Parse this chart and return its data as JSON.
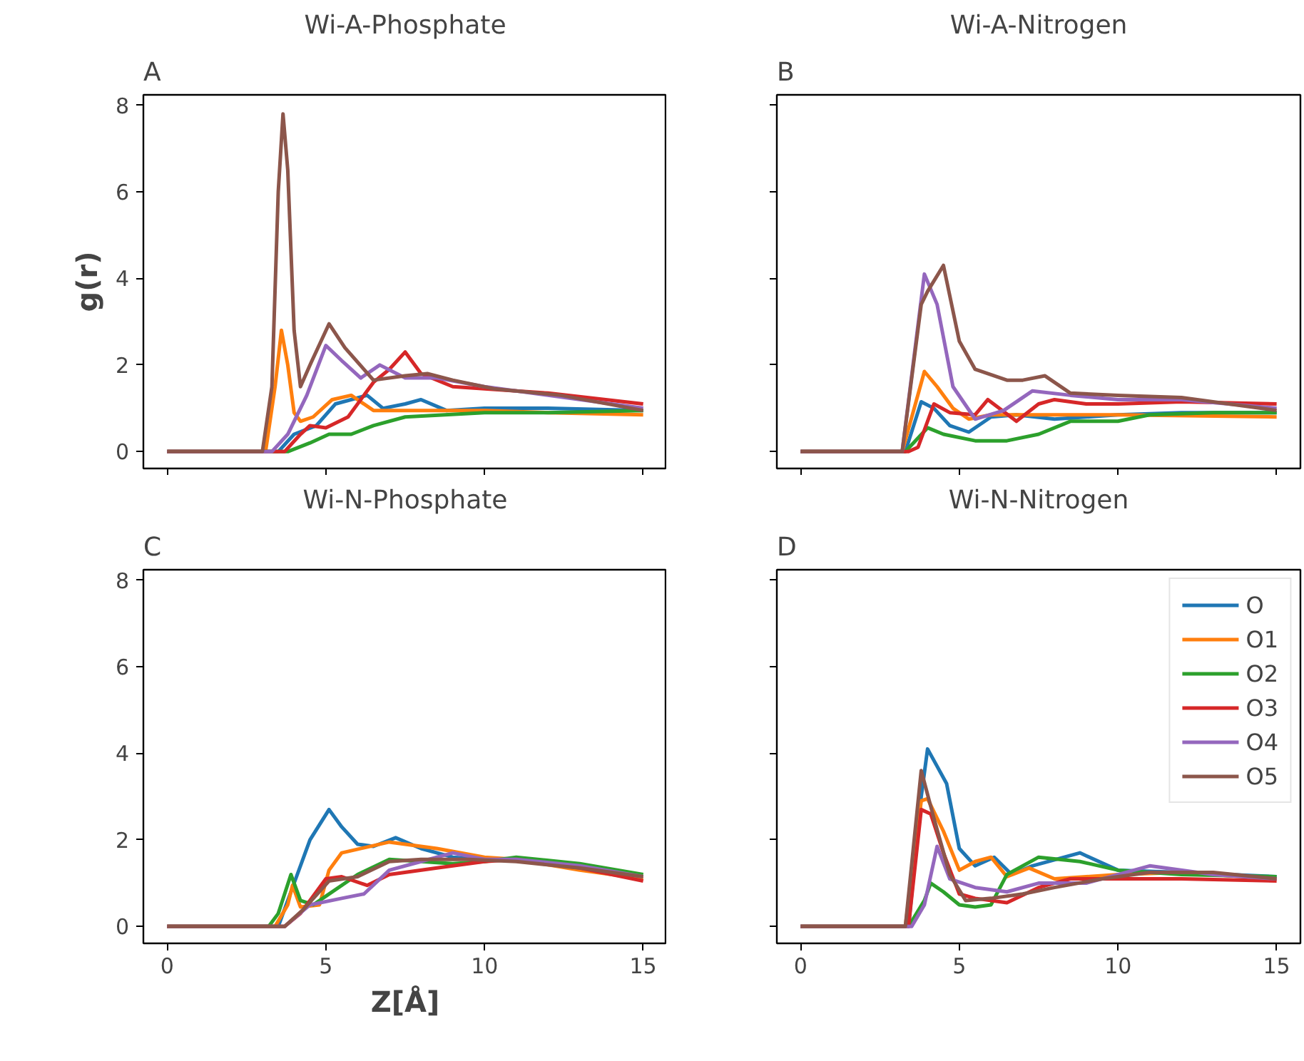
{
  "chart_data": [
    {
      "type": "line",
      "title": "Wi-A-Phosphate",
      "annotations": [
        "A"
      ],
      "ylabel": "g(r)",
      "tick_labels": "y",
      "grid": false,
      "line_style": "solid",
      "marker": "none",
      "xlim": [
        -0.75,
        15.75
      ],
      "ylim": [
        -0.39,
        8.24
      ],
      "xticks": [
        0,
        5,
        10,
        15
      ],
      "yticks": [
        0,
        2,
        4,
        6,
        8
      ],
      "series": [
        {
          "color": "#1f77b4",
          "x": [
            0,
            3.5,
            4.0,
            4.7,
            5.3,
            6.3,
            6.8,
            7.5,
            8.0,
            8.8,
            10,
            12,
            15
          ],
          "values": [
            0,
            0,
            0.4,
            0.6,
            1.1,
            1.3,
            1.0,
            1.1,
            1.2,
            0.95,
            1.0,
            1.0,
            0.95
          ]
        },
        {
          "color": "#ff7f0e",
          "x": [
            0,
            3.1,
            3.4,
            3.6,
            3.8,
            4.0,
            4.2,
            4.6,
            5.2,
            5.8,
            6.5,
            8,
            10,
            12,
            15
          ],
          "values": [
            0,
            0,
            1.5,
            2.8,
            2.0,
            0.9,
            0.7,
            0.8,
            1.2,
            1.3,
            0.95,
            0.95,
            0.95,
            0.9,
            0.85
          ]
        },
        {
          "color": "#2ca02c",
          "x": [
            0,
            3.8,
            4.5,
            5.1,
            5.8,
            6.5,
            7.5,
            10,
            12,
            15
          ],
          "values": [
            0,
            0,
            0.2,
            0.4,
            0.4,
            0.6,
            0.8,
            0.9,
            0.9,
            0.95
          ]
        },
        {
          "color": "#d62728",
          "x": [
            0,
            3.7,
            4.2,
            4.5,
            5.0,
            5.7,
            6.5,
            7.0,
            7.5,
            8.0,
            9,
            10,
            12,
            15
          ],
          "values": [
            0,
            0,
            0.4,
            0.6,
            0.55,
            0.8,
            1.6,
            1.9,
            2.3,
            1.8,
            1.5,
            1.45,
            1.35,
            1.1
          ]
        },
        {
          "color": "#9467bd",
          "x": [
            0,
            3.3,
            3.8,
            4.4,
            5.0,
            5.5,
            6.1,
            6.7,
            7.5,
            8.5,
            10,
            12,
            15
          ],
          "values": [
            0,
            0,
            0.4,
            1.3,
            2.45,
            2.1,
            1.7,
            2.0,
            1.7,
            1.7,
            1.5,
            1.3,
            1.0
          ]
        },
        {
          "color": "#8c564b",
          "x": [
            0,
            3.0,
            3.3,
            3.5,
            3.65,
            3.8,
            4.0,
            4.2,
            4.5,
            5.1,
            5.6,
            6.5,
            7.5,
            8.2,
            9,
            10.3,
            12.4,
            15
          ],
          "values": [
            0,
            0,
            1.5,
            6,
            7.8,
            6.5,
            2.8,
            1.5,
            2.0,
            2.95,
            2.4,
            1.65,
            1.75,
            1.8,
            1.65,
            1.45,
            1.3,
            0.95
          ]
        }
      ]
    },
    {
      "type": "line",
      "title": "Wi-A-Nitrogen",
      "annotations": [
        "B"
      ],
      "tick_labels": false,
      "grid": false,
      "line_style": "solid",
      "marker": "none",
      "xlim": [
        -0.75,
        15.75
      ],
      "ylim": [
        -0.39,
        8.24
      ],
      "xticks": [
        0,
        5,
        10,
        15
      ],
      "yticks": [
        0,
        2,
        4,
        6,
        8
      ],
      "series": [
        {
          "color": "#1f77b4",
          "x": [
            0,
            3.3,
            3.8,
            4.2,
            4.7,
            5.3,
            6.0,
            6.8,
            8,
            10,
            12,
            15
          ],
          "values": [
            0,
            0,
            1.15,
            1.0,
            0.6,
            0.45,
            0.8,
            0.85,
            0.75,
            0.85,
            0.9,
            0.9
          ]
        },
        {
          "color": "#ff7f0e",
          "x": [
            0,
            3.2,
            3.9,
            4.3,
            4.8,
            5.3,
            6.0,
            10,
            15
          ],
          "values": [
            0,
            0,
            1.85,
            1.5,
            1.0,
            0.75,
            0.85,
            0.85,
            0.8
          ]
        },
        {
          "color": "#2ca02c",
          "x": [
            0,
            3.3,
            4.0,
            4.5,
            5.5,
            6.5,
            7.5,
            8.5,
            10,
            11,
            13,
            15
          ],
          "values": [
            0,
            0,
            0.55,
            0.4,
            0.25,
            0.25,
            0.4,
            0.7,
            0.7,
            0.85,
            0.9,
            0.9
          ]
        },
        {
          "color": "#d62728",
          "x": [
            0,
            3.4,
            3.7,
            4.2,
            4.7,
            5.5,
            5.9,
            6.8,
            7.5,
            8.0,
            9,
            10,
            12,
            15
          ],
          "values": [
            0,
            0,
            0.1,
            1.1,
            0.9,
            0.85,
            1.2,
            0.7,
            1.1,
            1.2,
            1.1,
            1.1,
            1.15,
            1.1
          ]
        },
        {
          "color": "#9467bd",
          "x": [
            0,
            3.2,
            3.9,
            4.3,
            4.8,
            5.5,
            6.4,
            7.3,
            8.5,
            10,
            12,
            15
          ],
          "values": [
            0,
            0,
            4.1,
            3.4,
            1.5,
            0.75,
            0.95,
            1.4,
            1.3,
            1.2,
            1.2,
            1.0
          ]
        },
        {
          "color": "#8c564b",
          "x": [
            0,
            3.2,
            3.8,
            4.0,
            4.5,
            5.0,
            5.5,
            6.5,
            7.0,
            7.7,
            8.5,
            10,
            12,
            15
          ],
          "values": [
            0,
            0,
            3.4,
            3.7,
            4.3,
            2.55,
            1.9,
            1.65,
            1.65,
            1.75,
            1.35,
            1.3,
            1.25,
            0.95
          ]
        }
      ]
    },
    {
      "type": "line",
      "title": "Wi-N-Phosphate",
      "annotations": [
        "C"
      ],
      "xlabel": "Z[Å]",
      "grid": false,
      "line_style": "solid",
      "marker": "none",
      "xlim": [
        -0.75,
        15.75
      ],
      "ylim": [
        -0.39,
        8.24
      ],
      "xticks": [
        0,
        5,
        10,
        15
      ],
      "yticks": [
        0,
        2,
        4,
        6,
        8
      ],
      "series": [
        {
          "color": "#1f77b4",
          "x": [
            0,
            3.5,
            3.9,
            4.5,
            5.1,
            5.5,
            6.0,
            6.5,
            7.2,
            8,
            9,
            10,
            11
          ],
          "values": [
            0,
            0,
            0.8,
            2.0,
            2.7,
            2.3,
            1.9,
            1.85,
            2.05,
            1.8,
            1.6,
            1.55,
            1.55
          ]
        },
        {
          "color": "#ff7f0e",
          "x": [
            0,
            3.4,
            3.8,
            3.95,
            4.2,
            4.8,
            5.1,
            5.5,
            7.0,
            8.5,
            10,
            11,
            13,
            15
          ],
          "values": [
            0,
            0,
            0.5,
            0.95,
            0.45,
            0.5,
            1.3,
            1.7,
            1.95,
            1.8,
            1.6,
            1.55,
            1.3,
            1.1
          ]
        },
        {
          "color": "#2ca02c",
          "x": [
            0,
            3.2,
            3.5,
            3.9,
            4.2,
            4.6,
            5,
            6,
            7,
            8,
            9,
            10,
            11,
            13,
            15
          ],
          "values": [
            0,
            0,
            0.3,
            1.2,
            0.6,
            0.5,
            0.7,
            1.2,
            1.55,
            1.5,
            1.45,
            1.5,
            1.6,
            1.45,
            1.2
          ]
        },
        {
          "color": "#d62728",
          "x": [
            0,
            3.7,
            4.2,
            5.0,
            5.5,
            6.3,
            7,
            8.5,
            10,
            11,
            13,
            15
          ],
          "values": [
            0,
            0,
            0.3,
            1.1,
            1.15,
            0.95,
            1.2,
            1.35,
            1.5,
            1.55,
            1.35,
            1.05
          ]
        },
        {
          "color": "#9467bd",
          "x": [
            0,
            3.7,
            4.5,
            5.5,
            6.2,
            7,
            8,
            9,
            10,
            11,
            13,
            15
          ],
          "values": [
            0,
            0,
            0.5,
            0.65,
            0.75,
            1.3,
            1.5,
            1.7,
            1.55,
            1.55,
            1.4,
            1.15
          ]
        },
        {
          "color": "#8c564b",
          "x": [
            0,
            3.7,
            4.3,
            5.1,
            6.0,
            7,
            8.0,
            9.5,
            11,
            13,
            15
          ],
          "values": [
            0,
            0,
            0.4,
            1.05,
            1.15,
            1.5,
            1.55,
            1.55,
            1.5,
            1.35,
            1.15
          ]
        }
      ]
    },
    {
      "type": "line",
      "title": "Wi-N-Nitrogen",
      "annotations": [
        "D"
      ],
      "tick_labels": "x",
      "grid": false,
      "legend": "top right",
      "line_style": "solid",
      "marker": "none",
      "xlim": [
        -0.75,
        15.75
      ],
      "ylim": [
        -0.39,
        8.24
      ],
      "xticks": [
        0,
        5,
        10,
        15
      ],
      "yticks": [
        0,
        2,
        4,
        6,
        8
      ],
      "series": [
        {
          "name": "O",
          "color": "#1f77b4",
          "x": [
            0,
            3.4,
            3.8,
            4.0,
            4.3,
            4.6,
            5.0,
            5.5,
            6.1,
            6.65,
            7.3,
            8.8,
            10,
            12,
            15
          ],
          "values": [
            0,
            0,
            3.0,
            4.1,
            3.7,
            3.3,
            1.8,
            1.4,
            1.6,
            1.2,
            1.4,
            1.7,
            1.3,
            1.25,
            1.15
          ]
        },
        {
          "name": "O1",
          "color": "#ff7f0e",
          "x": [
            0,
            3.3,
            3.8,
            4.0,
            4.5,
            5.0,
            5.5,
            6.0,
            6.5,
            7.2,
            8,
            9,
            10,
            12,
            15
          ],
          "values": [
            0,
            0,
            2.9,
            2.95,
            2.2,
            1.3,
            1.5,
            1.6,
            1.15,
            1.35,
            1.1,
            1.15,
            1.2,
            1.25,
            1.1
          ]
        },
        {
          "name": "O2",
          "color": "#2ca02c",
          "x": [
            0,
            3.4,
            3.9,
            4.1,
            4.5,
            5.0,
            5.5,
            6.0,
            6.5,
            7.5,
            8.8,
            10,
            12,
            15
          ],
          "values": [
            0,
            0,
            0.6,
            1.0,
            0.8,
            0.5,
            0.45,
            0.5,
            1.2,
            1.6,
            1.5,
            1.3,
            1.2,
            1.15
          ]
        },
        {
          "name": "O3",
          "color": "#d62728",
          "x": [
            0,
            3.4,
            3.8,
            4.1,
            4.5,
            5.0,
            5.5,
            6.5,
            7.5,
            8.5,
            10,
            12,
            15
          ],
          "values": [
            0,
            0,
            2.7,
            2.6,
            1.7,
            0.75,
            0.65,
            0.55,
            0.9,
            1.1,
            1.1,
            1.1,
            1.05
          ]
        },
        {
          "name": "O4",
          "color": "#9467bd",
          "x": [
            0,
            3.5,
            3.9,
            4.3,
            4.7,
            5.5,
            6.5,
            7.5,
            9,
            11,
            13,
            15
          ],
          "values": [
            0,
            0,
            0.5,
            1.85,
            1.1,
            0.9,
            0.8,
            1.0,
            1.0,
            1.4,
            1.2,
            1.1
          ]
        },
        {
          "name": "O5",
          "color": "#8c564b",
          "x": [
            0,
            3.3,
            3.8,
            4.2,
            4.7,
            5.2,
            6,
            7,
            8,
            9.5,
            11,
            13,
            15
          ],
          "values": [
            0,
            0,
            3.6,
            2.5,
            1.2,
            0.6,
            0.65,
            0.75,
            0.9,
            1.1,
            1.25,
            1.25,
            1.1
          ]
        }
      ]
    }
  ]
}
